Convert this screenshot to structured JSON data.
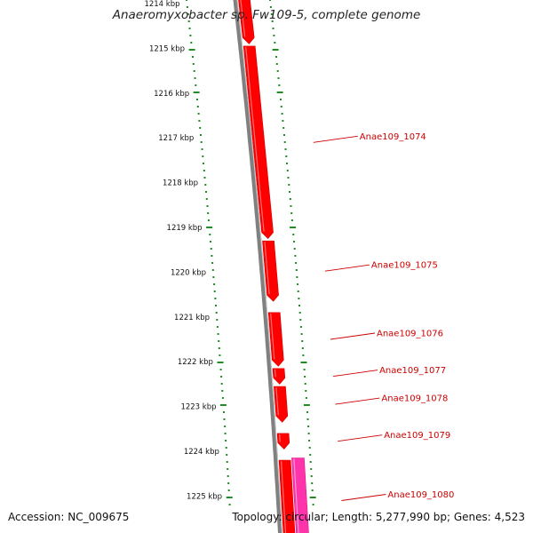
{
  "title": "Anaeromyxobacter sp. Fw109-5, complete genome",
  "accession": "Accession: NC_009675",
  "summary": "Topology: circular; Length: 5,277,990 bp; Genes: 4,523",
  "colors": {
    "backbone": "#808080",
    "gene_forward": "#ff0000",
    "gene_reverse": "#ff33aa",
    "ticks": "#228b22",
    "labels": "#cc0000"
  },
  "scale_ticks": [
    {
      "kbp": 1214,
      "label": "1214 kbp"
    },
    {
      "kbp": 1215,
      "label": "1215 kbp"
    },
    {
      "kbp": 1216,
      "label": "1216 kbp"
    },
    {
      "kbp": 1217,
      "label": "1217 kbp"
    },
    {
      "kbp": 1218,
      "label": "1218 kbp"
    },
    {
      "kbp": 1219,
      "label": "1219 kbp"
    },
    {
      "kbp": 1220,
      "label": "1220 kbp"
    },
    {
      "kbp": 1221,
      "label": "1221 kbp"
    },
    {
      "kbp": 1222,
      "label": "1222 kbp"
    },
    {
      "kbp": 1223,
      "label": "1223 kbp"
    },
    {
      "kbp": 1224,
      "label": "1224 kbp"
    },
    {
      "kbp": 1225,
      "label": "1225 kbp"
    }
  ],
  "genes": [
    {
      "id": "g1073",
      "label": "",
      "start": 1213.6,
      "end": 1214.9,
      "strand": "+"
    },
    {
      "id": "g1074",
      "label": "Anae109_1074",
      "start": 1214.95,
      "end": 1219.25,
      "strand": "+"
    },
    {
      "id": "g1075",
      "label": "Anae109_1075",
      "start": 1219.3,
      "end": 1220.65,
      "strand": "+"
    },
    {
      "id": "g1076",
      "label": "Anae109_1076",
      "start": 1220.9,
      "end": 1222.1,
      "strand": "+"
    },
    {
      "id": "g1077",
      "label": "Anae109_1077",
      "start": 1222.15,
      "end": 1222.5,
      "strand": "+"
    },
    {
      "id": "g1078",
      "label": "Anae109_1078",
      "start": 1222.55,
      "end": 1223.35,
      "strand": "+"
    },
    {
      "id": "g1079",
      "label": "Anae109_1079",
      "start": 1223.6,
      "end": 1223.95,
      "strand": "+"
    },
    {
      "id": "g1080a",
      "label": "Anae109_1080",
      "start": 1224.2,
      "end": 1226.0,
      "strand": "+"
    },
    {
      "id": "g1080b",
      "label": "",
      "start": 1224.15,
      "end": 1226.0,
      "strand": "-"
    }
  ]
}
